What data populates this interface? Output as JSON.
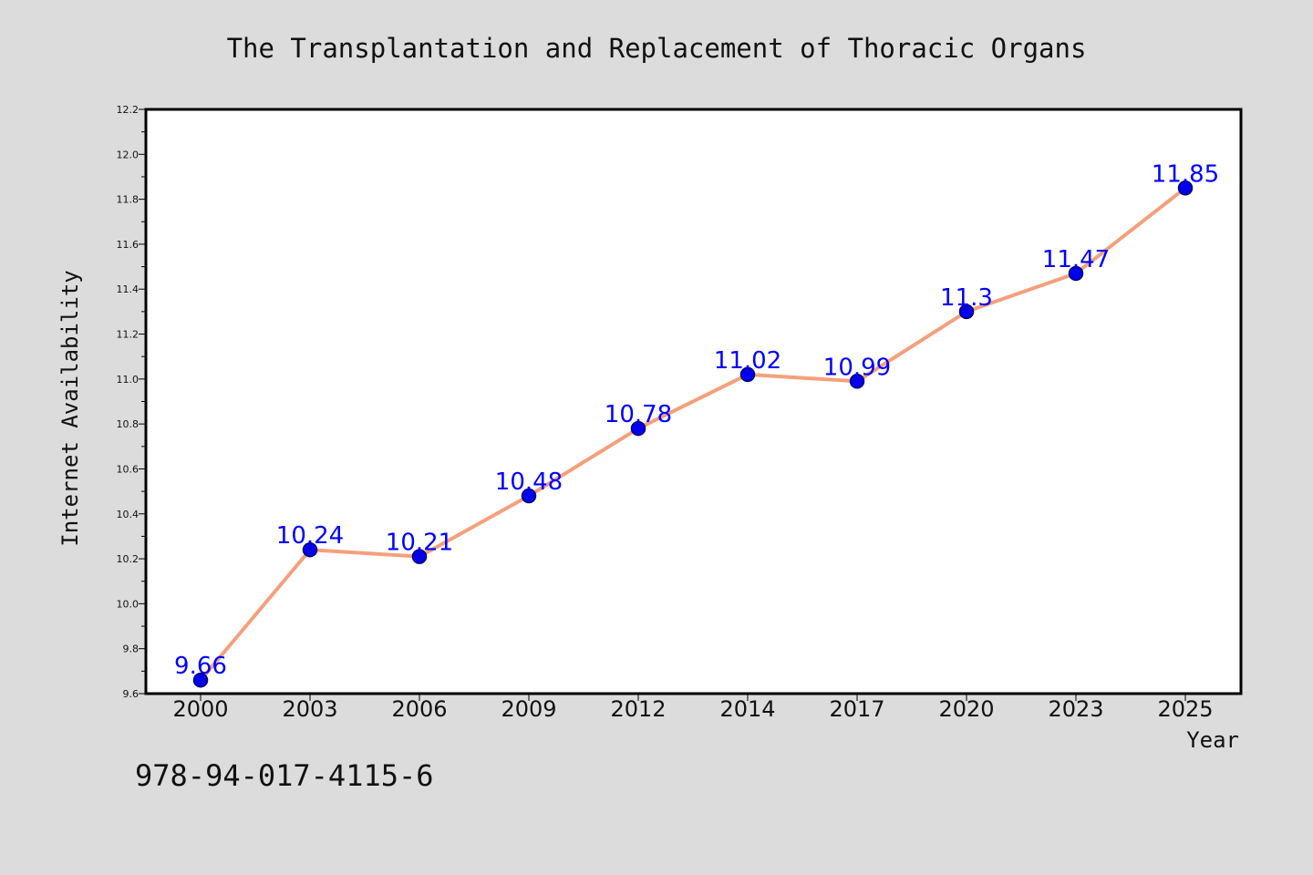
{
  "chart_data": {
    "type": "line",
    "title": "The Transplantation and Replacement of Thoracic Organs",
    "xlabel": "Year",
    "ylabel": "Internet Availability",
    "categories": [
      "2000",
      "2003",
      "2006",
      "2009",
      "2012",
      "2014",
      "2017",
      "2020",
      "2023",
      "2025"
    ],
    "series": [
      {
        "values": [
          9.66,
          10.24,
          10.21,
          10.48,
          10.78,
          11.02,
          10.99,
          11.3,
          11.47,
          11.85
        ]
      }
    ],
    "data_labels": [
      "9.66",
      "10.24",
      "10.21",
      "10.48",
      "10.78",
      "11.02",
      "10.99",
      "11.3",
      "11.47",
      "11.85"
    ],
    "ylim": [
      9.6,
      12.2
    ],
    "yticks": [
      9.6,
      9.8,
      10.0,
      10.2,
      10.4,
      10.6,
      10.8,
      11.0,
      11.2,
      11.4,
      11.6,
      11.8,
      12.0,
      12.2
    ],
    "ytick_labels": [
      "9.6",
      "9.8",
      "10.0",
      "10.2",
      "10.4",
      "10.6",
      "10.8",
      "11.0",
      "11.2",
      "11.4",
      "11.6",
      "11.8",
      "12.0",
      "12.2"
    ],
    "grid": false,
    "legend": "none",
    "colors": {
      "line": "#f4a07c",
      "marker": "#0000ee",
      "marker_edge": "#00006a",
      "data_label": "#0000ff",
      "background": "#dcdcdc",
      "plot_background": "#ffffff"
    }
  },
  "footer": {
    "isbn": "978-94-017-4115-6"
  }
}
